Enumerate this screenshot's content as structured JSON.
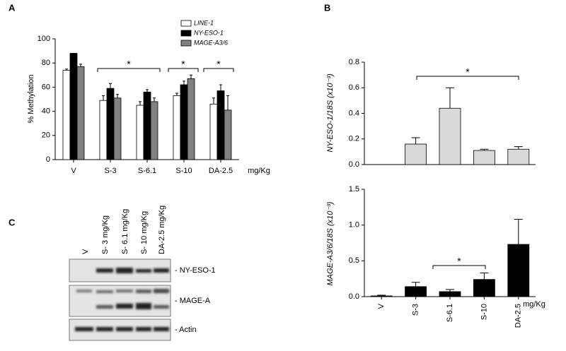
{
  "chart_data": [
    {
      "type": "bar",
      "panel_label": "A",
      "ylabel": "% Methylation",
      "xlabel": "mg/Kg",
      "categories": [
        "V",
        "S-3",
        "S-6.1",
        "S-10",
        "DA-2.5"
      ],
      "series": [
        {
          "name": "LINE-1",
          "color": "#ffffff",
          "values": [
            74,
            49,
            45,
            53,
            46
          ],
          "errors": [
            1,
            4,
            3,
            2,
            5
          ]
        },
        {
          "name": "NY-ESO-1",
          "color": "#000000",
          "values": [
            88,
            59,
            56,
            62,
            57
          ],
          "errors": [
            0,
            4,
            2,
            3,
            5
          ]
        },
        {
          "name": "MAGE-A3/6",
          "color": "#808080",
          "values": [
            77,
            51,
            48,
            67,
            41
          ],
          "errors": [
            2,
            3,
            3,
            3,
            12
          ]
        }
      ],
      "ylim": [
        0,
        100
      ],
      "yticks": [
        0,
        20,
        40,
        60,
        80,
        100
      ],
      "legend": "upper right",
      "annotations": [
        "*",
        "*",
        "*"
      ]
    },
    {
      "type": "bar",
      "panel_label": "B",
      "ylabel": "NY-ESO-1/18S (x10⁻³)",
      "categories": [
        null,
        null,
        null,
        null,
        null
      ],
      "values": [
        0,
        0.16,
        0.44,
        0.11,
        0.12
      ],
      "errors": [
        0,
        0.05,
        0.16,
        0.01,
        0.02
      ],
      "color": "#d9d9d9",
      "ylim": [
        0,
        0.8
      ],
      "yticks": [
        {
          "value": 0,
          "label": "0.0"
        },
        0.2,
        0.4,
        0.6,
        0.8
      ],
      "annotations": [
        "*"
      ]
    },
    {
      "type": "bar",
      "ylabel": "MAGE-A3/6/18S (x10⁻³)",
      "xlabel": "mg/Kg",
      "categories": [
        "V",
        "S-3",
        "S-6.1",
        "S-10",
        "DA-2.5"
      ],
      "values": [
        0.01,
        0.14,
        0.07,
        0.24,
        0.73
      ],
      "errors": [
        0.01,
        0.06,
        0.03,
        0.09,
        0.35
      ],
      "color": "#000000",
      "ylim": [
        0,
        1.5
      ],
      "yticks": [
        {
          "value": 0,
          "label": "0.0"
        },
        0.5,
        {
          "value": 1,
          "label": "1.0"
        },
        1.5
      ],
      "annotations": [
        "*"
      ]
    }
  ],
  "blot": {
    "panel_label": "C",
    "lanes": [
      "V",
      "S- 3 mg/Kg",
      "S- 6.1 mg/Kg",
      "S- 10 mg/Kg",
      "DA-2.5 mg/Kg"
    ],
    "rows": [
      "- NY-ESO-1",
      "- MAGE-A",
      "- Actin"
    ]
  }
}
